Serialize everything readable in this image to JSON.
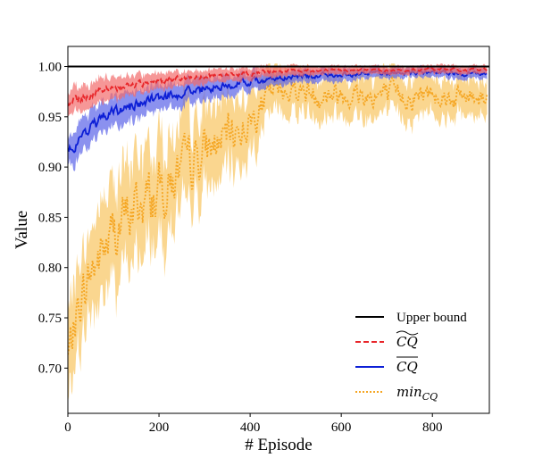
{
  "chart_data": {
    "type": "line",
    "title": "",
    "xlabel": "# Episode",
    "ylabel": "Value",
    "xlim": [
      0,
      925
    ],
    "ylim": [
      0.655,
      1.02
    ],
    "xticks": [
      0,
      200,
      400,
      600,
      800
    ],
    "yticks": [
      0.7,
      0.75,
      0.8,
      0.85,
      0.9,
      0.95,
      1.0
    ],
    "xtick_labels": [
      "0",
      "200",
      "400",
      "600",
      "800"
    ],
    "ytick_labels": [
      "0.70",
      "0.75",
      "0.80",
      "0.85",
      "0.90",
      "0.95",
      "1.00"
    ],
    "grid": false,
    "legend_position": "lower-right",
    "episodes": 920,
    "series": [
      {
        "key": "upper",
        "name": "Upper bound",
        "color": "#000000",
        "style": "solid",
        "constant": 1.0,
        "band": false
      },
      {
        "key": "cq_tilde",
        "name": "CQ",
        "decoration": "tilde",
        "color": "#e8262a",
        "band_color": "#f26b6b",
        "style": "dashed",
        "band": true,
        "x": [
          0,
          50,
          100,
          150,
          200,
          250,
          300,
          350,
          400,
          450,
          500,
          550,
          600,
          650,
          700,
          750,
          800,
          850,
          900,
          918
        ],
        "values": [
          0.965,
          0.972,
          0.979,
          0.982,
          0.985,
          0.988,
          0.99,
          0.992,
          0.993,
          0.995,
          0.996,
          0.996,
          0.996,
          0.997,
          0.996,
          0.997,
          0.997,
          0.997,
          0.997,
          0.997
        ],
        "band_halfwidth": [
          0.012,
          0.012,
          0.011,
          0.009,
          0.008,
          0.007,
          0.007,
          0.006,
          0.006,
          0.005,
          0.005,
          0.004,
          0.004,
          0.004,
          0.004,
          0.004,
          0.004,
          0.004,
          0.004,
          0.004
        ]
      },
      {
        "key": "cq_bar",
        "name": "CQ",
        "decoration": "bar",
        "color": "#0d1fd6",
        "band_color": "#5a63e8",
        "style": "solid",
        "band": true,
        "x": [
          0,
          50,
          100,
          150,
          200,
          250,
          300,
          350,
          400,
          450,
          500,
          550,
          600,
          650,
          700,
          750,
          800,
          850,
          900,
          918
        ],
        "values": [
          0.915,
          0.94,
          0.955,
          0.962,
          0.968,
          0.974,
          0.978,
          0.982,
          0.984,
          0.988,
          0.99,
          0.991,
          0.992,
          0.993,
          0.993,
          0.994,
          0.994,
          0.993,
          0.993,
          0.993
        ],
        "band_halfwidth": [
          0.015,
          0.016,
          0.015,
          0.014,
          0.013,
          0.012,
          0.011,
          0.01,
          0.009,
          0.007,
          0.006,
          0.006,
          0.006,
          0.005,
          0.005,
          0.005,
          0.005,
          0.005,
          0.005,
          0.005
        ]
      },
      {
        "key": "min_cq",
        "name": "min",
        "subscript": "CQ",
        "color": "#f5a623",
        "band_color": "#f8c560",
        "style": "dotted",
        "band": true,
        "x": [
          0,
          25,
          50,
          100,
          150,
          200,
          250,
          300,
          350,
          400,
          450,
          500,
          550,
          600,
          650,
          700,
          750,
          800,
          850,
          900,
          918
        ],
        "values": [
          0.71,
          0.765,
          0.795,
          0.835,
          0.86,
          0.875,
          0.895,
          0.915,
          0.93,
          0.945,
          0.975,
          0.978,
          0.972,
          0.974,
          0.97,
          0.972,
          0.97,
          0.974,
          0.969,
          0.972,
          0.972
        ],
        "band_halfwidth": [
          0.04,
          0.04,
          0.045,
          0.05,
          0.05,
          0.048,
          0.045,
          0.04,
          0.035,
          0.03,
          0.022,
          0.02,
          0.022,
          0.02,
          0.022,
          0.02,
          0.02,
          0.018,
          0.02,
          0.018,
          0.018
        ]
      }
    ]
  }
}
